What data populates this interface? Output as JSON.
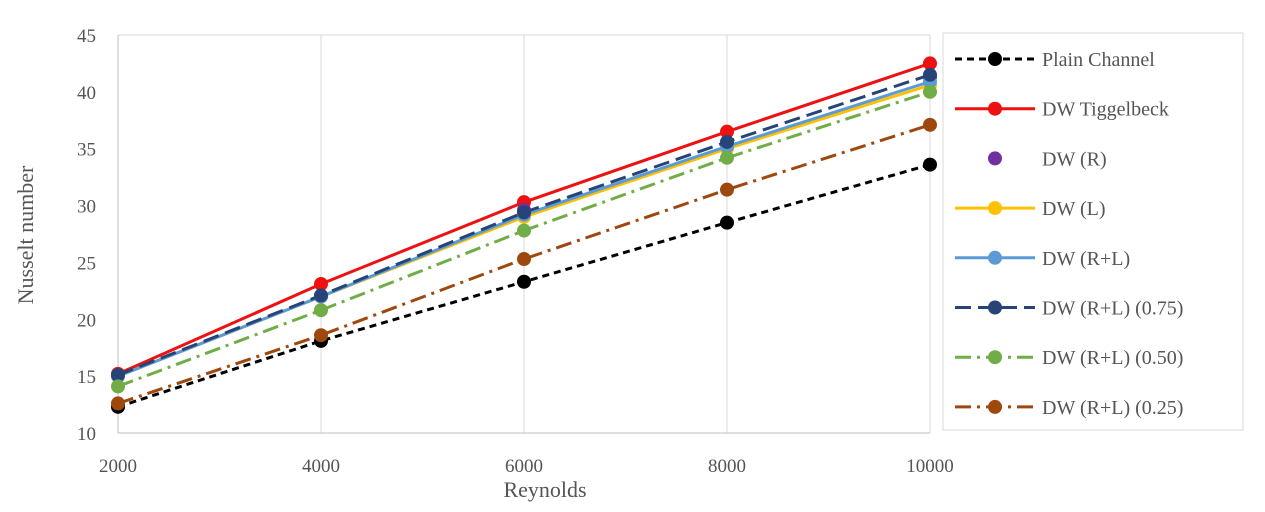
{
  "chart_data": {
    "type": "line",
    "title": "",
    "xlabel": "Reynolds",
    "ylabel": "Nusselt number",
    "x": [
      2000,
      4000,
      6000,
      8000,
      10000
    ],
    "xlim": [
      2000,
      10000
    ],
    "ylim": [
      10,
      45
    ],
    "y_ticks": [
      10,
      15,
      20,
      25,
      30,
      35,
      40,
      45
    ],
    "grid": "vertical",
    "legend_position": "right",
    "series": [
      {
        "name": "Plain Channel",
        "values": [
          12.3,
          18.1,
          23.3,
          28.5,
          33.6
        ],
        "color": "#000000",
        "dash": "short-dash",
        "markers": true
      },
      {
        "name": "DW Tiggelbeck",
        "values": [
          15.2,
          23.1,
          30.3,
          36.5,
          42.5
        ],
        "color": "#ee1111",
        "dash": "solid",
        "markers": true
      },
      {
        "name": "DW (R)",
        "values": [
          15.0,
          22.0,
          29.6,
          35.4,
          41.3
        ],
        "color": "#7030a0",
        "dash": "none",
        "markers": true
      },
      {
        "name": "DW (L)",
        "values": [
          15.0,
          22.0,
          29.0,
          35.0,
          40.6
        ],
        "color": "#ffc000",
        "dash": "solid",
        "markers": true
      },
      {
        "name": "DW (R+L)",
        "values": [
          15.0,
          22.0,
          29.2,
          35.2,
          40.9
        ],
        "color": "#5b9bd5",
        "dash": "solid",
        "markers": true
      },
      {
        "name": "DW (R+L) (0.75)",
        "values": [
          15.1,
          22.1,
          29.4,
          35.6,
          41.5
        ],
        "color": "#264478",
        "dash": "long-dash",
        "markers": true
      },
      {
        "name": "DW (R+L) (0.50)",
        "values": [
          14.1,
          20.8,
          27.8,
          34.2,
          40.0
        ],
        "color": "#70ad47",
        "dash": "long-dash-dot",
        "markers": true
      },
      {
        "name": "DW (R+L) (0.25)",
        "values": [
          12.6,
          18.6,
          25.3,
          31.4,
          37.1
        ],
        "color": "#9e480e",
        "dash": "long-dash-dot",
        "markers": true
      }
    ]
  }
}
